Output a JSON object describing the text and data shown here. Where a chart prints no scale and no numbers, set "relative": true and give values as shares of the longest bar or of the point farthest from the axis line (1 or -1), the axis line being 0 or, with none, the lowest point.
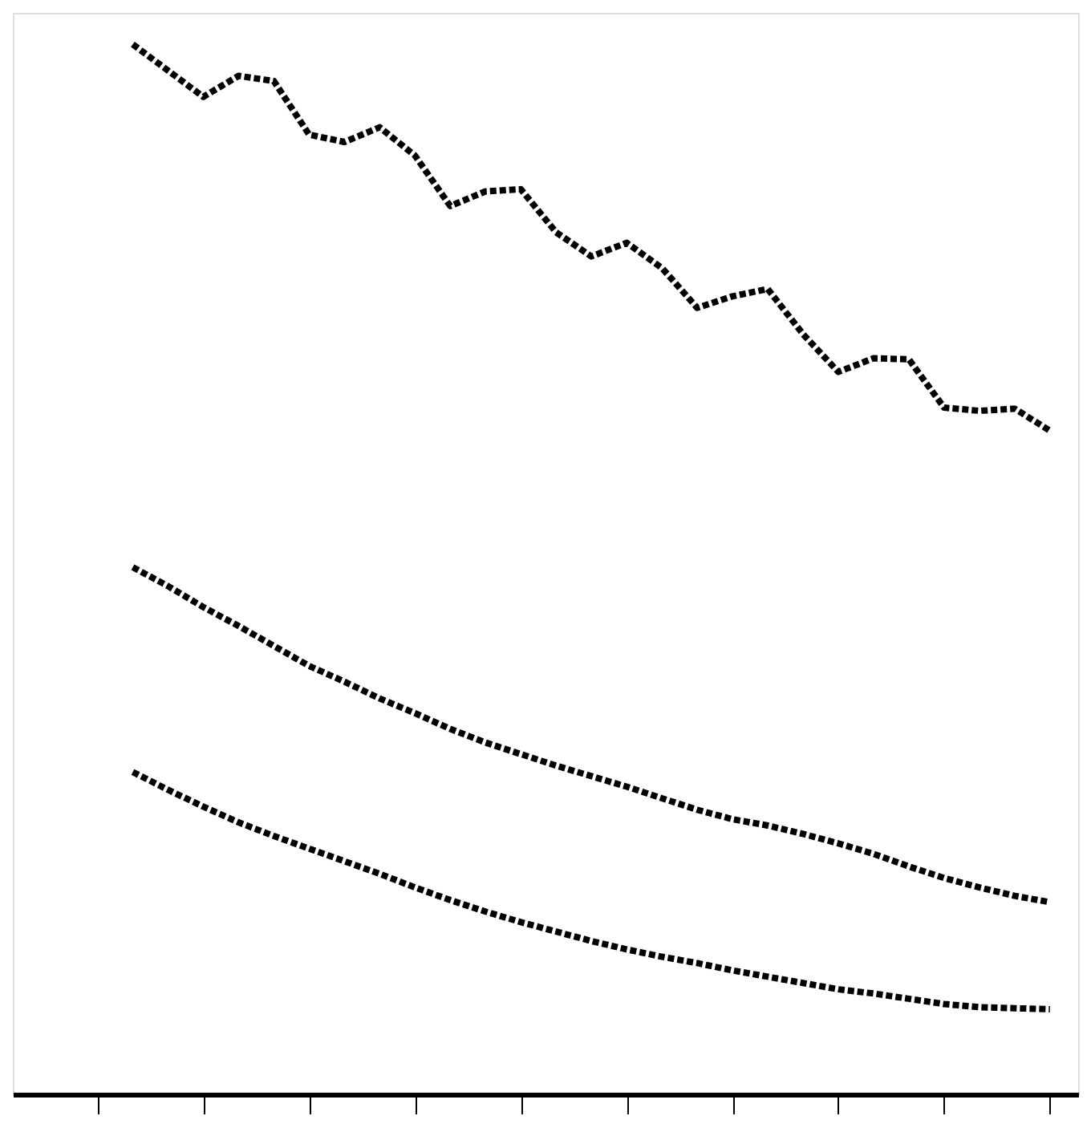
{
  "chart_data": {
    "type": "line",
    "relative": true,
    "grid": false,
    "legend": false,
    "tick_labels": false,
    "categories": [
      null,
      null,
      null,
      null,
      null,
      null,
      null,
      null,
      null,
      null,
      null,
      null,
      null,
      null,
      null,
      null,
      null,
      null,
      null,
      null,
      null,
      null,
      null,
      null,
      null,
      null,
      null,
      null
    ],
    "series": [
      {
        "color": "#000000",
        "line_style": "dotted",
        "values": [
          null,
          1.0,
          0.975,
          0.95,
          0.97,
          0.965,
          0.914,
          0.907,
          0.921,
          0.894,
          0.846,
          0.86,
          0.862,
          0.821,
          0.798,
          0.811,
          0.787,
          0.749,
          0.76,
          0.767,
          0.724,
          0.688,
          0.701,
          0.7,
          0.654,
          0.651,
          0.653,
          0.632
        ]
      },
      {
        "color": "#000000",
        "line_style": "dotted",
        "values": [
          null,
          0.502,
          0.484,
          0.464,
          0.446,
          0.427,
          0.408,
          0.393,
          0.377,
          0.363,
          0.348,
          0.335,
          0.324,
          0.313,
          0.303,
          0.293,
          0.282,
          0.271,
          0.262,
          0.256,
          0.248,
          0.239,
          0.229,
          0.217,
          0.206,
          0.197,
          0.189,
          0.183
        ]
      },
      {
        "color": "#000000",
        "line_style": "dotted",
        "values": [
          null,
          0.307,
          0.29,
          0.274,
          0.259,
          0.246,
          0.234,
          0.222,
          0.21,
          0.197,
          0.185,
          0.174,
          0.164,
          0.155,
          0.146,
          0.138,
          0.131,
          0.125,
          0.118,
          0.112,
          0.106,
          0.1,
          0.096,
          0.091,
          0.086,
          0.083,
          0.082,
          0.081
        ]
      }
    ]
  }
}
